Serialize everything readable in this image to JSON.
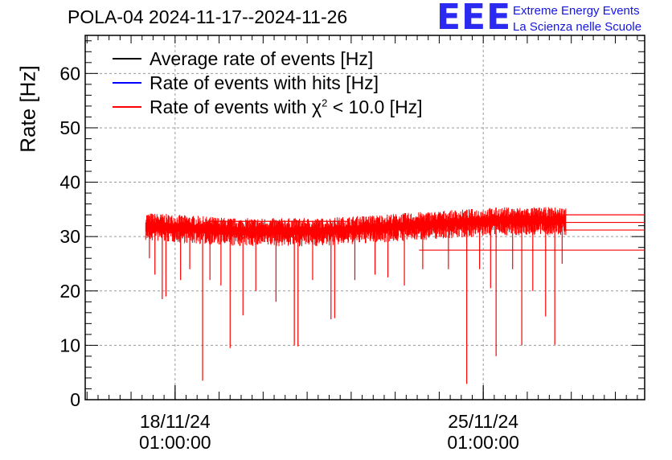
{
  "chart_data": {
    "type": "line",
    "title": "POLA-04 2024-11-17--2024-11-26",
    "ylabel": "Rate [Hz]",
    "xlabel": "",
    "ylim": [
      0,
      67
    ],
    "yticks": [
      0,
      10,
      20,
      30,
      40,
      50,
      60
    ],
    "x_tick_labels": [
      {
        "line1": "18/11/24",
        "line2": "01:00:00",
        "x": "2024-11-18 01:00:00"
      },
      {
        "line1": "25/11/24",
        "line2": "01:00:00",
        "x": "2024-11-25 01:00:00"
      }
    ],
    "xlim": [
      "2024-11-16 00:00:00",
      "2024-11-28 17:00:00"
    ],
    "grid": true,
    "legend_position": "top-left",
    "series": [
      {
        "name": "Average rate of events [Hz]",
        "color": "#000000",
        "x": [
          "2024-11-17 09:00:00",
          "2024-11-18 09:00:00",
          "2024-11-19 09:00:00",
          "2024-11-20 09:00:00",
          "2024-11-21 09:00:00",
          "2024-11-22 09:00:00",
          "2024-11-23 09:00:00",
          "2024-11-24 09:00:00",
          "2024-11-25 09:00:00",
          "2024-11-26 09:00:00"
        ],
        "y": [
          32.0,
          31.5,
          31.0,
          31.0,
          31.0,
          31.5,
          32.0,
          32.5,
          33.0,
          33.0
        ]
      },
      {
        "name": "Rate of events with hits [Hz]",
        "color": "#0000ff",
        "x": [
          "2024-11-17 09:00:00",
          "2024-11-18 09:00:00",
          "2024-11-19 09:00:00",
          "2024-11-20 09:00:00",
          "2024-11-21 09:00:00",
          "2024-11-22 09:00:00",
          "2024-11-23 09:00:00",
          "2024-11-24 09:00:00",
          "2024-11-25 09:00:00",
          "2024-11-26 09:00:00"
        ],
        "y": [
          32.0,
          31.5,
          31.0,
          31.0,
          31.0,
          31.5,
          32.0,
          32.5,
          33.0,
          33.0
        ]
      },
      {
        "name": "Rate of events with χ² < 10.0 [Hz]",
        "color": "#ff0000",
        "x": [
          "2024-11-17 09:00:00",
          "2024-11-18 09:00:00",
          "2024-11-19 09:00:00",
          "2024-11-20 09:00:00",
          "2024-11-21 09:00:00",
          "2024-11-22 09:00:00",
          "2024-11-23 09:00:00",
          "2024-11-24 09:00:00",
          "2024-11-25 09:00:00",
          "2024-11-26 09:00:00"
        ],
        "y": [
          32.0,
          31.5,
          31.0,
          31.0,
          31.0,
          31.5,
          32.0,
          32.5,
          33.0,
          33.0
        ]
      }
    ],
    "dips": [
      {
        "x": "2024-11-17 11:00:00",
        "y": 26
      },
      {
        "x": "2024-11-17 14:00:00",
        "y": 23
      },
      {
        "x": "2024-11-17 18:00:00",
        "y": 18.5
      },
      {
        "x": "2024-11-17 20:00:00",
        "y": 19
      },
      {
        "x": "2024-11-18 04:00:00",
        "y": 22
      },
      {
        "x": "2024-11-18 09:00:00",
        "y": 24
      },
      {
        "x": "2024-11-18 16:00:00",
        "y": 3.5
      },
      {
        "x": "2024-11-18 20:00:00",
        "y": 22
      },
      {
        "x": "2024-11-19 02:00:00",
        "y": 21
      },
      {
        "x": "2024-11-19 07:00:00",
        "y": 9.5
      },
      {
        "x": "2024-11-19 14:00:00",
        "y": 15.5
      },
      {
        "x": "2024-11-19 21:00:00",
        "y": 20
      },
      {
        "x": "2024-11-20 08:00:00",
        "y": 18
      },
      {
        "x": "2024-11-20 18:00:00",
        "y": 10
      },
      {
        "x": "2024-11-20 20:00:00",
        "y": 9.8
      },
      {
        "x": "2024-11-21 04:00:00",
        "y": 22
      },
      {
        "x": "2024-11-21 14:00:00",
        "y": 14.8
      },
      {
        "x": "2024-11-21 16:00:00",
        "y": 15
      },
      {
        "x": "2024-11-22 03:00:00",
        "y": 22
      },
      {
        "x": "2024-11-22 14:00:00",
        "y": 23
      },
      {
        "x": "2024-11-22 21:00:00",
        "y": 22.5
      },
      {
        "x": "2024-11-23 06:00:00",
        "y": 21
      },
      {
        "x": "2024-11-23 16:00:00",
        "y": 24
      },
      {
        "x": "2024-11-24 06:00:00",
        "y": 24
      },
      {
        "x": "2024-11-24 16:00:00",
        "y": 2.9
      },
      {
        "x": "2024-11-24 23:00:00",
        "y": 24
      },
      {
        "x": "2024-11-25 05:00:00",
        "y": 20.5
      },
      {
        "x": "2024-11-25 08:00:00",
        "y": 8
      },
      {
        "x": "2024-11-25 17:00:00",
        "y": 24
      },
      {
        "x": "2024-11-25 22:00:00",
        "y": 10
      },
      {
        "x": "2024-11-26 04:00:00",
        "y": 20
      },
      {
        "x": "2024-11-26 11:00:00",
        "y": 15.3
      },
      {
        "x": "2024-11-26 16:00:00",
        "y": 10.1
      },
      {
        "x": "2024-11-26 20:00:00",
        "y": 25
      }
    ],
    "band_start": "2024-11-17 09:00:00",
    "band_end": "2024-11-26 22:00:00",
    "tail_levels": [
      {
        "y": 34.0,
        "from": "2024-11-26 22:00:00"
      },
      {
        "y": 32.6,
        "from": "2024-11-26 22:00:00"
      },
      {
        "y": 31.2,
        "from": "2024-11-26 22:00:00"
      },
      {
        "y": 27.5,
        "from": "2024-11-23 14:00:00"
      },
      {
        "y": 32.8,
        "from": "2024-11-18 20:00:00",
        "to": "2024-11-21 23:00:00"
      }
    ]
  },
  "logo": {
    "mark": "EEE",
    "line1": "Extreme Energy Events",
    "line2": "La Scienza nelle Scuole"
  },
  "legend": [
    {
      "label": "Average rate of events [Hz]",
      "color": "#000000"
    },
    {
      "label": "Rate of events with hits [Hz]",
      "color": "#0000ff"
    },
    {
      "label_prefix": "Rate of events with χ",
      "label_sup": "2",
      "label_suffix": " < 10.0 [Hz]",
      "color": "#ff0000"
    }
  ]
}
